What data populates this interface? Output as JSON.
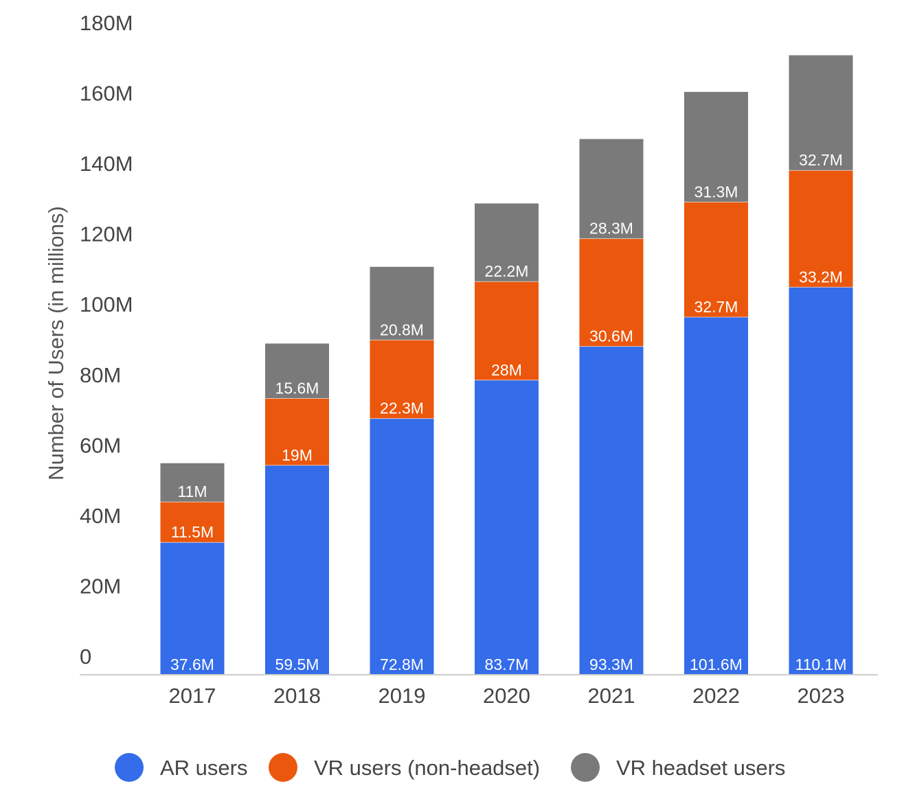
{
  "chart_data": {
    "type": "bar",
    "stacked": true,
    "categories": [
      "2017",
      "2018",
      "2019",
      "2020",
      "2021",
      "2022",
      "2023"
    ],
    "series": [
      {
        "name": "AR users",
        "color": "#346ce9",
        "values": [
          37.6,
          59.5,
          72.8,
          83.7,
          93.3,
          101.6,
          110.1
        ],
        "labels": [
          "37.6M",
          "59.5M",
          "72.8M",
          "83.7M",
          "93.3M",
          "101.6M",
          "110.1M"
        ]
      },
      {
        "name": "VR users (non-headset)",
        "color": "#eb570c",
        "values": [
          11.5,
          19,
          22.3,
          28,
          30.6,
          32.7,
          33.2
        ],
        "labels": [
          "11.5M",
          "19M",
          "22.3M",
          "28M",
          "30.6M",
          "32.7M",
          "33.2M"
        ]
      },
      {
        "name": "VR headset users",
        "color": "#7a7a7a",
        "values": [
          11,
          15.6,
          20.8,
          22.2,
          28.3,
          31.3,
          32.7
        ],
        "labels": [
          "11M",
          "15.6M",
          "20.8M",
          "22.2M",
          "28.3M",
          "31.3M",
          "32.7M"
        ]
      }
    ],
    "ylabel": "Number of Users (in millions)",
    "ylim": [
      0,
      180
    ],
    "yticks": [
      0,
      20,
      40,
      60,
      80,
      100,
      120,
      140,
      160,
      180
    ],
    "ytick_labels": [
      "0",
      "20M",
      "40M",
      "60M",
      "80M",
      "100M",
      "120M",
      "140M",
      "160M",
      "180M"
    ],
    "grid": false,
    "legend_position": "bottom"
  }
}
